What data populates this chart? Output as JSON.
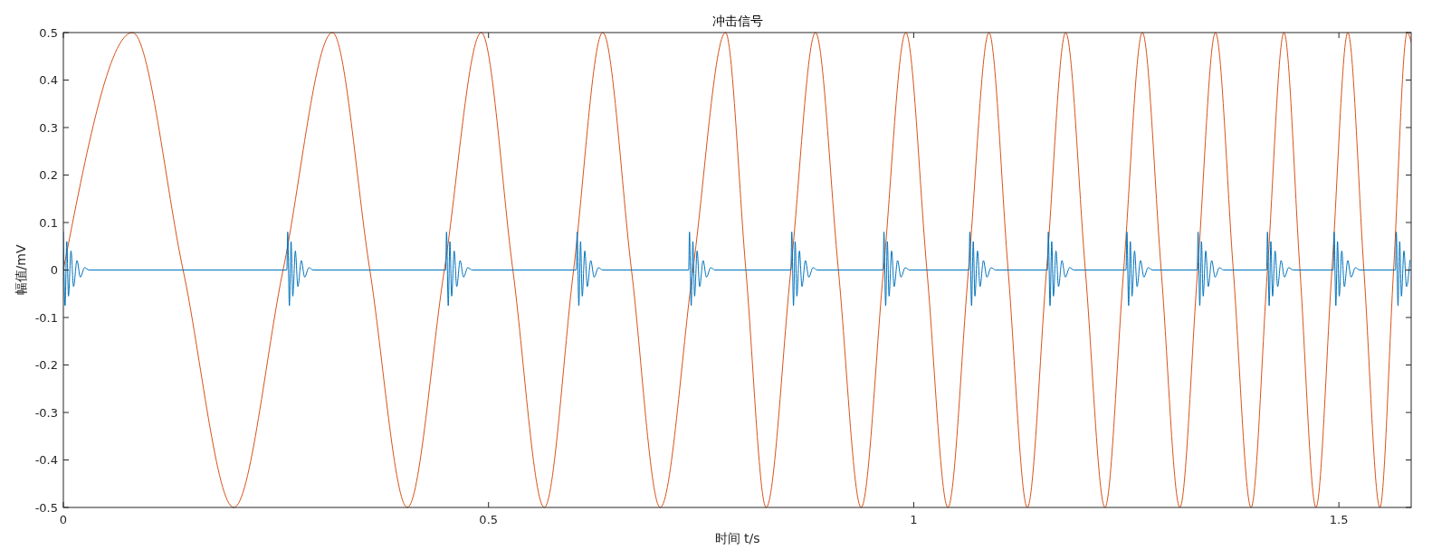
{
  "chart_data": {
    "type": "line",
    "title": "冲击信号",
    "xlabel": "时间 t/s",
    "ylabel": "幅值/mV",
    "xlim": [
      0,
      1.585
    ],
    "ylim": [
      -0.5,
      0.5
    ],
    "xticks": [
      0,
      0.5,
      1,
      1.5
    ],
    "yticks": [
      -0.5,
      -0.4,
      -0.3,
      -0.2,
      -0.1,
      0,
      0.1,
      0.2,
      0.3,
      0.4,
      0.5
    ],
    "grid": false,
    "series": [
      {
        "color": "#d95319",
        "x": [
          0,
          0.0812,
          0.1408,
          0.2004,
          0.2584,
          0.3164,
          0.3604,
          0.4045,
          0.448,
          0.4915,
          0.5286,
          0.5656,
          0.6,
          0.6343,
          0.6681,
          0.7019,
          0.7403,
          0.7787,
          0.8026,
          0.8265,
          0.8555,
          0.8845,
          0.9114,
          0.9382,
          0.9645,
          0.9907,
          1.0155,
          1.0402,
          1.0644,
          1.0885,
          1.111,
          1.1336,
          1.1562,
          1.1787,
          1.2018,
          1.2249,
          1.2469,
          1.2689,
          1.291,
          1.313,
          1.3339,
          1.3548,
          1.3758,
          1.3967,
          1.416,
          1.4354,
          1.4542,
          1.473,
          1.4918,
          1.5105,
          1.5294,
          1.5482,
          1.5643,
          1.5803,
          1.585
        ],
        "values": [
          0,
          0.5,
          0,
          -0.5,
          0,
          0.5,
          0,
          -0.5,
          0,
          0.5,
          0,
          -0.5,
          0,
          0.5,
          0,
          -0.5,
          0,
          0.5,
          0,
          -0.5,
          0,
          0.5,
          0,
          -0.5,
          0,
          0.5,
          0,
          -0.5,
          0,
          0.5,
          0,
          -0.5,
          0,
          0.5,
          0,
          -0.5,
          0,
          0.5,
          0,
          -0.5,
          0,
          0.5,
          0,
          -0.5,
          0,
          0.5,
          0,
          -0.5,
          0,
          0.5,
          0,
          -0.5,
          0,
          0.5,
          0.48
        ]
      },
      {
        "color": "#0072bd",
        "x": [
          0,
          0.002,
          0.004,
          0.006,
          0.009,
          0.012,
          0.016,
          0.02,
          0.025,
          0.03,
          0.2628,
          0.2638,
          0.2658,
          0.2678,
          0.2698,
          0.2728,
          0.2758,
          0.2798,
          0.2838,
          0.2888,
          0.2938,
          0.4496,
          0.4506,
          0.4526,
          0.4546,
          0.4566,
          0.4596,
          0.4626,
          0.4666,
          0.4706,
          0.4756,
          0.4806,
          0.6032,
          0.6042,
          0.6062,
          0.6082,
          0.6102,
          0.6132,
          0.6162,
          0.6202,
          0.6242,
          0.6292,
          0.6342,
          0.7353,
          0.7363,
          0.7383,
          0.7403,
          0.7423,
          0.7453,
          0.7483,
          0.7523,
          0.7563,
          0.7613,
          0.7663,
          0.8556,
          0.8566,
          0.8586,
          0.8606,
          0.8626,
          0.8656,
          0.8686,
          0.8726,
          0.8766,
          0.8816,
          0.8866,
          0.964,
          0.965,
          0.967,
          0.969,
          0.971,
          0.974,
          0.977,
          0.981,
          0.985,
          0.99,
          0.995,
          1.065,
          1.066,
          1.068,
          1.07,
          1.072,
          1.075,
          1.078,
          1.082,
          1.086,
          1.091,
          1.096,
          1.1573,
          1.1583,
          1.1603,
          1.1623,
          1.1643,
          1.1673,
          1.1703,
          1.1743,
          1.1783,
          1.1833,
          1.1883,
          1.2497,
          1.2507,
          1.2527,
          1.2547,
          1.2567,
          1.2597,
          1.2627,
          1.2667,
          1.2707,
          1.2757,
          1.2807,
          1.3334,
          1.3344,
          1.3364,
          1.3384,
          1.3404,
          1.3434,
          1.3464,
          1.3504,
          1.3544,
          1.3594,
          1.3644,
          1.415,
          1.416,
          1.418,
          1.42,
          1.422,
          1.425,
          1.428,
          1.432,
          1.436,
          1.441,
          1.446,
          1.4934,
          1.4944,
          1.4964,
          1.4984,
          1.5004,
          1.5034,
          1.5064,
          1.5104,
          1.5144,
          1.5194,
          1.5244,
          1.5665,
          1.5675,
          1.5695,
          1.5715,
          1.5735,
          1.5765,
          1.5795,
          1.5835
        ],
        "values": [
          0.08,
          -0.075,
          0.06,
          -0.055,
          0.04,
          -0.035,
          0.02,
          -0.015,
          0.005,
          0,
          0,
          0.08,
          -0.075,
          0.06,
          -0.055,
          0.04,
          -0.035,
          0.02,
          -0.015,
          0.005,
          0,
          0,
          0.08,
          -0.075,
          0.06,
          -0.055,
          0.04,
          -0.035,
          0.02,
          -0.015,
          0.005,
          0,
          0,
          0.08,
          -0.075,
          0.06,
          -0.055,
          0.04,
          -0.035,
          0.02,
          -0.015,
          0.005,
          0,
          0,
          0.08,
          -0.075,
          0.06,
          -0.055,
          0.04,
          -0.035,
          0.02,
          -0.015,
          0.005,
          0,
          0,
          0.08,
          -0.075,
          0.06,
          -0.055,
          0.04,
          -0.035,
          0.02,
          -0.015,
          0.005,
          0,
          0,
          0.08,
          -0.075,
          0.06,
          -0.055,
          0.04,
          -0.035,
          0.02,
          -0.015,
          0.005,
          0,
          0,
          0.08,
          -0.075,
          0.06,
          -0.055,
          0.04,
          -0.035,
          0.02,
          -0.015,
          0.005,
          0,
          0,
          0.08,
          -0.075,
          0.06,
          -0.055,
          0.04,
          -0.035,
          0.02,
          -0.015,
          0.005,
          0,
          0,
          0.08,
          -0.075,
          0.06,
          -0.055,
          0.04,
          -0.035,
          0.02,
          -0.015,
          0.005,
          0,
          0,
          0.08,
          -0.075,
          0.06,
          -0.055,
          0.04,
          -0.035,
          0.02,
          -0.015,
          0.005,
          0,
          0,
          0.08,
          -0.075,
          0.06,
          -0.055,
          0.04,
          -0.035,
          0.02,
          -0.015,
          0.005,
          0,
          0,
          0.08,
          -0.075,
          0.06,
          -0.055,
          0.04,
          -0.035,
          0.02,
          -0.015,
          0.005,
          0,
          0,
          0.08,
          -0.075,
          0.06,
          -0.055,
          0.04,
          -0.035,
          0.02
        ]
      }
    ]
  }
}
